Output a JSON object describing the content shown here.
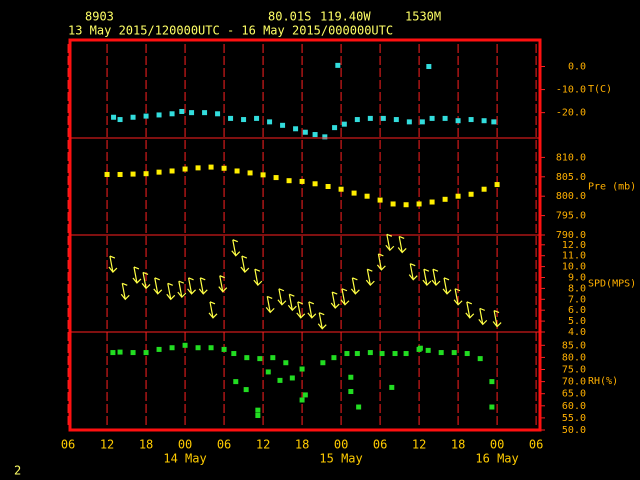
{
  "header": {
    "station": "8903",
    "lat": "80.01S",
    "lon": "119.40W",
    "elev": "1530M",
    "period": "13 May 2015/120000UTC - 16 May 2015/000000UTC"
  },
  "footer": "2",
  "chart_data": [
    {
      "type": "scatter",
      "ylabel": "T(C)",
      "color": "#33dddd",
      "xlim": [
        6.3,
        78.6
      ],
      "ylim": [
        -31,
        11.5
      ],
      "yticks": [
        {
          "value": 0,
          "label": "0.0"
        },
        {
          "value": -10,
          "label": "-10.0"
        },
        {
          "value": -20,
          "label": "-20.0"
        }
      ],
      "x": [
        13,
        14,
        16,
        18,
        20,
        22,
        23.5,
        25,
        27,
        29,
        31,
        33,
        35,
        37,
        39,
        41,
        42.5,
        44,
        45.5,
        47,
        48.5,
        50.5,
        52.5,
        54.5,
        56.5,
        58.5,
        60.5,
        62,
        64,
        66,
        68,
        70,
        71.5,
        47.5,
        61.5
      ],
      "values": [
        -22,
        -23,
        -22,
        -21.5,
        -21,
        -20.5,
        -19.5,
        -20,
        -20,
        -20.5,
        -22.5,
        -23,
        -22.5,
        -24,
        -25.5,
        -27,
        -28.5,
        -29.5,
        -30.5,
        -26.5,
        -25,
        -23,
        -22.5,
        -22.5,
        -23,
        -24,
        -24,
        -22.5,
        -22.5,
        -23.5,
        -23,
        -23.5,
        -24,
        0.5,
        0
      ]
    },
    {
      "type": "scatter",
      "ylabel": "Pre (mb)",
      "color": "#ffee00",
      "xlim": [
        6.3,
        78.6
      ],
      "ylim": [
        790,
        815
      ],
      "yticks": [
        {
          "value": 810,
          "label": "810.0"
        },
        {
          "value": 805,
          "label": "805.0"
        },
        {
          "value": 800,
          "label": "800.0"
        },
        {
          "value": 795,
          "label": "795.0"
        },
        {
          "value": 790,
          "label": "790.0"
        }
      ],
      "x": [
        12,
        14,
        16,
        18,
        20,
        22,
        24,
        26,
        28,
        30,
        32,
        34,
        36,
        38,
        40,
        42,
        44,
        46,
        48,
        50,
        52,
        54,
        56,
        58,
        60,
        62,
        64,
        66,
        68,
        70,
        72
      ],
      "values": [
        805.6,
        805.6,
        805.7,
        805.8,
        806.2,
        806.5,
        807,
        807.3,
        807.5,
        807.2,
        806.5,
        806,
        805.5,
        804.8,
        804,
        803.8,
        803.2,
        802.5,
        801.8,
        800.8,
        800,
        799,
        798,
        797.8,
        798,
        798.5,
        799.2,
        800,
        800.5,
        801.8,
        803
      ]
    },
    {
      "type": "barb",
      "ylabel": "SPD(MPS)",
      "color": "#ffff44",
      "xlim": [
        6.3,
        78.6
      ],
      "ylim": [
        4,
        12.9
      ],
      "yticks": [
        {
          "value": 12,
          "label": "12.0"
        },
        {
          "value": 11,
          "label": "11.0"
        },
        {
          "value": 10,
          "label": "10.0"
        },
        {
          "value": 9,
          "label": "9.0"
        },
        {
          "value": 8,
          "label": "8.0"
        },
        {
          "value": 7,
          "label": "7.0"
        },
        {
          "value": 6,
          "label": "6.0"
        },
        {
          "value": 5,
          "label": "5.0"
        },
        {
          "value": 4,
          "label": "4.0"
        }
      ],
      "x": [
        12.9,
        14.8,
        16.6,
        18,
        19.8,
        21.8,
        23.5,
        25,
        26.8,
        28.3,
        29.8,
        31.8,
        33.2,
        35.2,
        37.1,
        38.9,
        40.5,
        41.8,
        43.5,
        45.1,
        47.1,
        48.6,
        50.2,
        52.5,
        54.2,
        55.5,
        57.4,
        59.1,
        61.2,
        62.6,
        64.3,
        66,
        67.8,
        69.8,
        72
      ],
      "values": [
        9.5,
        7,
        8.5,
        8,
        7.5,
        7,
        7.2,
        7.5,
        7.5,
        5.3,
        7.7,
        11,
        9.5,
        8.3,
        5.8,
        6.5,
        6,
        5.3,
        5.3,
        4.3,
        6.2,
        6.5,
        7.5,
        8.3,
        9.7,
        11.5,
        11.3,
        8.8,
        8.3,
        8.3,
        7.5,
        6.5,
        5.3,
        4.7,
        4.5
      ]
    },
    {
      "type": "scatter",
      "ylabel": "RH(%)",
      "color": "#22dd22",
      "xlim": [
        6.3,
        78.6
      ],
      "ylim": [
        50,
        90.5
      ],
      "yticks": [
        {
          "value": 85,
          "label": "85.0"
        },
        {
          "value": 80,
          "label": "80.0"
        },
        {
          "value": 75,
          "label": "75.0"
        },
        {
          "value": 70,
          "label": "70.0"
        },
        {
          "value": 65,
          "label": "65.0"
        },
        {
          "value": 60,
          "label": "60.0"
        },
        {
          "value": 55,
          "label": "55.0"
        },
        {
          "value": 50,
          "label": "50.0"
        }
      ],
      "x": [
        12.9,
        14,
        16,
        18,
        20,
        22,
        24,
        26,
        28,
        30,
        31.5,
        33.5,
        35.5,
        37.5,
        39.5,
        42,
        45.2,
        46.9,
        48.9,
        50.5,
        52.5,
        54.3,
        56.3,
        58,
        60,
        61.4,
        63.4,
        65.4,
        67.4,
        69.4,
        31.8,
        33.4,
        35.2,
        35.2,
        36.8,
        38.6,
        40.5,
        42,
        42.5,
        49.5,
        49.5,
        50.7,
        55.8,
        60.2,
        71.2,
        71.2
      ],
      "values": [
        82,
        82.2,
        82,
        82,
        83.3,
        84,
        85,
        84,
        84,
        83.3,
        81.6,
        79.9,
        79.5,
        79.9,
        77.8,
        75.2,
        77.8,
        79.9,
        81.6,
        81.6,
        82,
        81.6,
        81.6,
        81.6,
        83.3,
        82.9,
        82,
        82,
        81.6,
        79.5,
        70,
        66.7,
        58.2,
        56,
        74,
        70.5,
        71.5,
        62.4,
        64.5,
        71.8,
        65.9,
        59.5,
        67.6,
        83.8,
        70,
        59.5
      ],
      "xticks": [
        {
          "value": 6,
          "label": "06"
        },
        {
          "value": 12,
          "label": "12"
        },
        {
          "value": 18,
          "label": "18"
        },
        {
          "value": 24,
          "label": "00"
        },
        {
          "value": 30,
          "label": "06"
        },
        {
          "value": 36,
          "label": "12"
        },
        {
          "value": 42,
          "label": "18"
        },
        {
          "value": 48,
          "label": "00"
        },
        {
          "value": 54,
          "label": "06"
        },
        {
          "value": 60,
          "label": "12"
        },
        {
          "value": 66,
          "label": "18"
        },
        {
          "value": 72,
          "label": "00"
        },
        {
          "value": 78,
          "label": "06"
        }
      ],
      "annotations": [
        {
          "text": "14 May",
          "x": 24
        },
        {
          "text": "15 May",
          "x": 48
        },
        {
          "text": "16 May",
          "x": 72
        }
      ]
    }
  ]
}
